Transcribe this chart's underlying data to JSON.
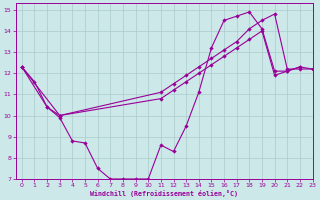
{
  "background_color": "#cce8e8",
  "grid_color": "#aacccc",
  "line_color": "#990099",
  "xlim": [
    -0.5,
    23
  ],
  "ylim": [
    7,
    15.3
  ],
  "xlabel": "Windchill (Refroidissement éolien,°C)",
  "xticks": [
    0,
    1,
    2,
    3,
    4,
    5,
    6,
    7,
    8,
    9,
    10,
    11,
    12,
    13,
    14,
    15,
    16,
    17,
    18,
    19,
    20,
    21,
    22,
    23
  ],
  "yticks": [
    7,
    8,
    9,
    10,
    11,
    12,
    13,
    14,
    15
  ],
  "line1_x": [
    0,
    1,
    2,
    3,
    4,
    5,
    6,
    7,
    8,
    9,
    10,
    11,
    12,
    13,
    14,
    15,
    16,
    17,
    18,
    19,
    20,
    21,
    22,
    23
  ],
  "line1_y": [
    12.3,
    11.6,
    10.4,
    9.9,
    8.8,
    8.7,
    7.5,
    7.0,
    7.0,
    7.0,
    7.0,
    8.6,
    8.3,
    9.5,
    11.1,
    13.2,
    14.5,
    14.7,
    14.9,
    14.1,
    12.1,
    12.1,
    12.3,
    12.2
  ],
  "line2_x": [
    0,
    2,
    3,
    11,
    12,
    13,
    14,
    15,
    16,
    17,
    18,
    19,
    20,
    21,
    22
  ],
  "line2_y": [
    12.3,
    10.4,
    10.0,
    10.8,
    11.2,
    11.6,
    12.0,
    12.4,
    12.8,
    13.2,
    13.6,
    14.0,
    11.9,
    12.1,
    12.3
  ],
  "line3_x": [
    0,
    3,
    11,
    12,
    13,
    14,
    15,
    16,
    17,
    18,
    19,
    20,
    21,
    22,
    23
  ],
  "line3_y": [
    12.3,
    10.0,
    11.1,
    11.5,
    11.9,
    12.3,
    12.7,
    13.1,
    13.5,
    14.1,
    14.5,
    14.8,
    12.2,
    12.2,
    12.2
  ]
}
